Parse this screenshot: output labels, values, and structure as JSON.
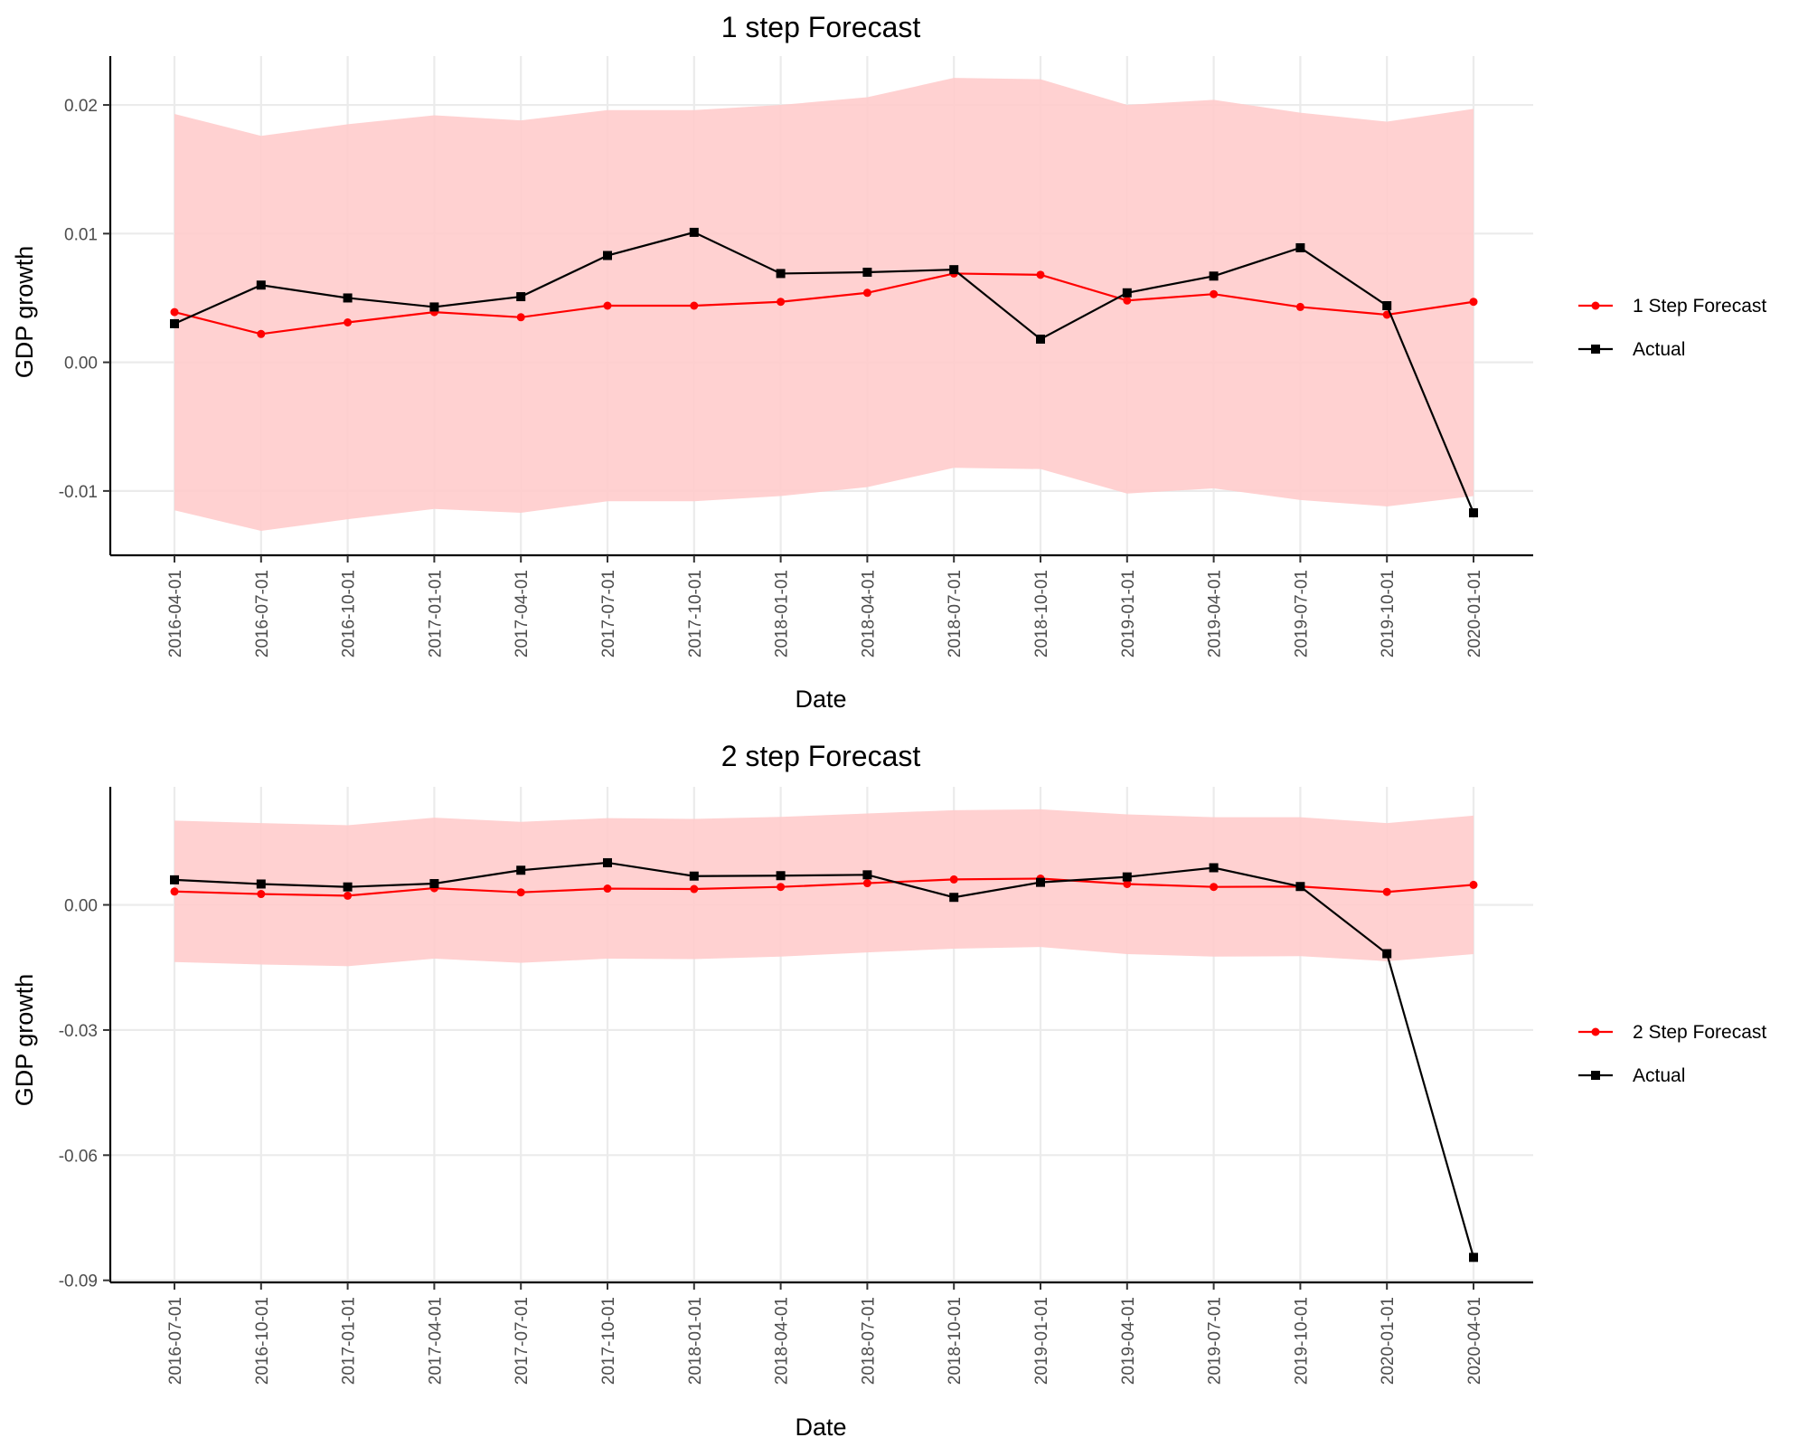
{
  "chart_data": [
    {
      "type": "line",
      "title": "1 step Forecast",
      "xlabel": "Date",
      "ylabel": "GDP growth",
      "x": [
        "2016-04-01",
        "2016-07-01",
        "2016-10-01",
        "2017-01-01",
        "2017-04-01",
        "2017-07-01",
        "2017-10-01",
        "2018-01-01",
        "2018-04-01",
        "2018-07-01",
        "2018-10-01",
        "2019-01-01",
        "2019-04-01",
        "2019-07-01",
        "2019-10-01",
        "2020-01-01"
      ],
      "yticks": [
        0.02,
        0.01,
        0.0,
        -0.01
      ],
      "ytick_labels": [
        "0.02",
        "0.01",
        "0.00",
        "-0.01"
      ],
      "ylim": [
        -0.015,
        0.0238
      ],
      "grid": true,
      "legend_position": "right",
      "series": [
        {
          "name": "1 Step Forecast",
          "color": "#ff0000",
          "marker": "circle",
          "values": [
            0.0039,
            0.0022,
            0.0031,
            0.0039,
            0.0035,
            0.0044,
            0.0044,
            0.0047,
            0.0054,
            0.0069,
            0.0068,
            0.0048,
            0.0053,
            0.0043,
            0.0037,
            0.0047
          ],
          "band_lower": [
            -0.0115,
            -0.0131,
            -0.0122,
            -0.0114,
            -0.0117,
            -0.0108,
            -0.0108,
            -0.0104,
            -0.0097,
            -0.0082,
            -0.0083,
            -0.0102,
            -0.0098,
            -0.0107,
            -0.0112,
            -0.0104
          ],
          "band_upper": [
            0.0193,
            0.0176,
            0.0185,
            0.0192,
            0.0188,
            0.0196,
            0.0196,
            0.02,
            0.0206,
            0.0221,
            0.022,
            0.02,
            0.0204,
            0.0194,
            0.0187,
            0.0197
          ],
          "band_color": "#ffcccc"
        },
        {
          "name": "Actual",
          "color": "#000000",
          "marker": "square",
          "values": [
            0.003,
            0.006,
            0.005,
            0.0043,
            0.0051,
            0.0083,
            0.0101,
            0.0069,
            0.007,
            0.0072,
            0.0018,
            0.0054,
            0.0067,
            0.0089,
            0.0044,
            -0.0117
          ]
        }
      ]
    },
    {
      "type": "line",
      "title": "2 step Forecast",
      "xlabel": "Date",
      "ylabel": "GDP growth",
      "x": [
        "2016-07-01",
        "2016-10-01",
        "2017-01-01",
        "2017-04-01",
        "2017-07-01",
        "2017-10-01",
        "2018-01-01",
        "2018-04-01",
        "2018-07-01",
        "2018-10-01",
        "2019-01-01",
        "2019-04-01",
        "2019-07-01",
        "2019-10-01",
        "2020-01-01",
        "2020-04-01"
      ],
      "yticks": [
        0.0,
        -0.03,
        -0.06,
        -0.09
      ],
      "ytick_labels": [
        "0.00",
        "-0.03",
        "-0.06",
        "-0.09"
      ],
      "ylim": [
        -0.0905,
        0.0283
      ],
      "grid": true,
      "legend_position": "right",
      "series": [
        {
          "name": "2 Step Forecast",
          "color": "#ff0000",
          "marker": "circle",
          "values": [
            0.0032,
            0.0026,
            0.0022,
            0.004,
            0.003,
            0.0039,
            0.0038,
            0.0043,
            0.0052,
            0.0061,
            0.0063,
            0.005,
            0.0043,
            0.0044,
            0.0031,
            0.0048
          ],
          "band_lower": [
            -0.0137,
            -0.0143,
            -0.0147,
            -0.0129,
            -0.0139,
            -0.0129,
            -0.013,
            -0.0124,
            -0.0114,
            -0.0105,
            -0.0101,
            -0.0118,
            -0.0124,
            -0.0123,
            -0.0135,
            -0.0118
          ],
          "band_upper": [
            0.0202,
            0.0196,
            0.0191,
            0.0209,
            0.0199,
            0.0208,
            0.0206,
            0.0211,
            0.0219,
            0.0227,
            0.0229,
            0.0217,
            0.021,
            0.021,
            0.0196,
            0.0214
          ],
          "band_color": "#ffcccc"
        },
        {
          "name": "Actual",
          "color": "#000000",
          "marker": "square",
          "values": [
            0.006,
            0.005,
            0.0043,
            0.0051,
            0.0083,
            0.0101,
            0.0069,
            0.007,
            0.0072,
            0.0018,
            0.0054,
            0.0067,
            0.0089,
            0.0044,
            -0.0117,
            -0.0845
          ]
        }
      ]
    }
  ]
}
